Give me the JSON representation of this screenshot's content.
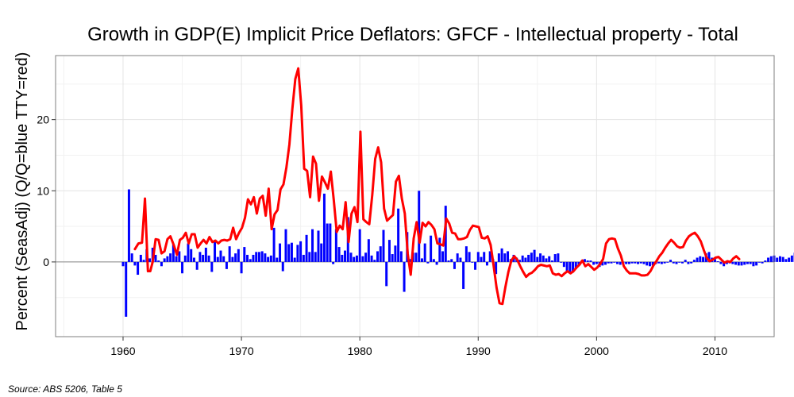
{
  "chart_data": {
    "type": "bar+line",
    "title": "Growth in GDP(E) Implicit Price Deflators: GFCF - Intellectual property - Total",
    "ylabel": "Percent (SeasAdj) (Q/Q=blue TTY=red)",
    "xlabel": "",
    "source": "Source: ABS 5206, Table 5",
    "xlim": [
      1954.3,
      2015.0
    ],
    "ylim": [
      -10.5,
      29.0
    ],
    "x_ticks": [
      1960,
      1970,
      1980,
      1990,
      2000,
      2010
    ],
    "y_ticks": [
      0,
      10,
      20
    ],
    "grid": true,
    "colors": {
      "bar": "#0000ff",
      "line": "#ff0000",
      "zero_line": "#888888",
      "grid_major": "#e4e4e4",
      "grid_minor": "#f2f2f2",
      "border": "#7f7f7f"
    },
    "series": [
      {
        "kind": "bar",
        "start": 1960.0,
        "step": 0.25,
        "values": [
          -0.6,
          -7.7,
          10.2,
          1.2,
          -0.5,
          -1.8,
          1.0,
          0.3,
          1.8,
          0.5,
          2.0,
          1.0,
          0.2,
          -0.6,
          0.5,
          0.8,
          1.2,
          2.5,
          0.8,
          1.5,
          -1.6,
          0.9,
          2.6,
          1.8,
          0.6,
          -1.1,
          1.4,
          1.0,
          2.0,
          0.9,
          -1.4,
          2.8,
          0.7,
          1.6,
          0.8,
          -1.0,
          2.2,
          0.7,
          1.2,
          1.8,
          -1.6,
          2.1,
          1.0,
          0.4,
          1.0,
          1.4,
          1.4,
          1.5,
          1.2,
          0.7,
          0.9,
          4.8,
          0.6,
          2.6,
          -1.3,
          4.6,
          2.5,
          2.7,
          0.6,
          2.4,
          2.9,
          1.0,
          3.8,
          1.4,
          4.6,
          1.4,
          4.4,
          2.6,
          9.6,
          5.4,
          5.4,
          -0.3,
          4.6,
          2.1,
          1.0,
          1.6,
          6.3,
          1.3,
          0.7,
          0.9,
          4.6,
          0.8,
          1.3,
          3.2,
          0.9,
          0.3,
          1.5,
          2.2,
          4.5,
          -3.4,
          3.1,
          1.1,
          2.3,
          7.5,
          1.5,
          -4.2,
          4.2,
          0.4,
          1.3,
          1.3,
          10.0,
          0.5,
          2.6,
          -0.2,
          3.7,
          0.4,
          -0.4,
          3.4,
          1.5,
          7.9,
          0.2,
          0.4,
          -1.0,
          1.2,
          0.6,
          -3.8,
          2.2,
          1.4,
          -0.1,
          -1.1,
          1.4,
          0.7,
          1.4,
          -0.5,
          1.5,
          0.4,
          -1.7,
          1.2,
          1.9,
          1.2,
          1.5,
          0.4,
          1.0,
          0.6,
          0.3,
          0.9,
          0.6,
          1.0,
          1.3,
          1.7,
          0.7,
          1.2,
          0.9,
          0.5,
          0.8,
          0.2,
          1.1,
          1.2,
          -0.1,
          -0.7,
          -1.3,
          -1.4,
          -1.5,
          -1.0,
          -0.4,
          0.2,
          0.4,
          0.2,
          0.2,
          -0.4,
          -0.3,
          -0.7,
          -0.5,
          -0.4,
          -0.2,
          -0.2,
          -0.1,
          -0.3,
          -0.4,
          -0.2,
          -0.3,
          -0.3,
          -0.2,
          -0.2,
          -0.3,
          -0.2,
          -0.3,
          -0.5,
          -0.6,
          -0.5,
          -0.3,
          -0.2,
          -0.3,
          -0.2,
          -0.1,
          0.3,
          -0.2,
          -0.3,
          -0.1,
          -0.2,
          0.3,
          -0.3,
          -0.2,
          0.3,
          0.6,
          0.8,
          0.7,
          1.2,
          1.4,
          0.6,
          0.4,
          0.1,
          -0.3,
          -0.6,
          -0.3,
          -0.2,
          -0.3,
          -0.4,
          -0.5,
          -0.5,
          -0.4,
          -0.3,
          -0.3,
          -0.6,
          -0.5,
          -0.1,
          -0.2,
          0.2,
          0.6,
          0.8,
          0.9,
          0.6,
          0.8,
          0.7,
          0.4,
          0.6,
          0.9,
          1.3,
          1.3,
          0.6,
          0.9,
          1.1,
          0.9,
          0.3,
          0.2,
          0.0,
          0.1,
          0.2,
          0.0,
          0.1,
          0.1,
          0.2,
          0.4,
          0.3,
          0.0,
          0.2,
          0.2
        ]
      },
      {
        "kind": "line",
        "points": [
          [
            1961.0,
            1.8
          ],
          [
            1961.3,
            2.6
          ],
          [
            1961.6,
            2.7
          ],
          [
            1961.85,
            8.9
          ],
          [
            1962.1,
            -1.3
          ],
          [
            1962.3,
            -1.3
          ],
          [
            1962.5,
            0.0
          ],
          [
            1962.75,
            3.2
          ],
          [
            1963.0,
            3.1
          ],
          [
            1963.25,
            1.2
          ],
          [
            1963.5,
            1.5
          ],
          [
            1963.75,
            3.2
          ],
          [
            1964.0,
            3.6
          ],
          [
            1964.3,
            2.3
          ],
          [
            1964.55,
            1.0
          ],
          [
            1964.8,
            3.1
          ],
          [
            1965.05,
            3.4
          ],
          [
            1965.3,
            4.1
          ],
          [
            1965.55,
            2.6
          ],
          [
            1965.8,
            3.9
          ],
          [
            1966.05,
            3.9
          ],
          [
            1966.3,
            2.0
          ],
          [
            1966.55,
            2.6
          ],
          [
            1966.8,
            3.1
          ],
          [
            1967.05,
            2.6
          ],
          [
            1967.3,
            3.5
          ],
          [
            1967.55,
            2.8
          ],
          [
            1967.8,
            3.0
          ],
          [
            1968.05,
            2.6
          ],
          [
            1968.3,
            3.0
          ],
          [
            1968.55,
            3.1
          ],
          [
            1968.8,
            3.0
          ],
          [
            1969.05,
            3.2
          ],
          [
            1969.3,
            4.8
          ],
          [
            1969.55,
            3.2
          ],
          [
            1969.8,
            4.1
          ],
          [
            1970.05,
            4.8
          ],
          [
            1970.3,
            6.2
          ],
          [
            1970.55,
            8.8
          ],
          [
            1970.8,
            8.1
          ],
          [
            1971.05,
            9.1
          ],
          [
            1971.3,
            6.8
          ],
          [
            1971.55,
            8.9
          ],
          [
            1971.8,
            9.3
          ],
          [
            1972.05,
            6.5
          ],
          [
            1972.3,
            10.3
          ],
          [
            1972.55,
            4.6
          ],
          [
            1972.8,
            6.7
          ],
          [
            1973.05,
            7.3
          ],
          [
            1973.3,
            10.2
          ],
          [
            1973.55,
            10.9
          ],
          [
            1973.8,
            13.3
          ],
          [
            1974.05,
            16.5
          ],
          [
            1974.3,
            21.5
          ],
          [
            1974.55,
            25.7
          ],
          [
            1974.8,
            27.2
          ],
          [
            1975.05,
            22.0
          ],
          [
            1975.3,
            13.1
          ],
          [
            1975.55,
            12.8
          ],
          [
            1975.8,
            9.1
          ],
          [
            1976.05,
            14.8
          ],
          [
            1976.3,
            13.8
          ],
          [
            1976.55,
            8.6
          ],
          [
            1976.8,
            12.0
          ],
          [
            1977.05,
            11.2
          ],
          [
            1977.3,
            10.3
          ],
          [
            1977.55,
            12.7
          ],
          [
            1977.8,
            8.7
          ],
          [
            1978.05,
            4.2
          ],
          [
            1978.3,
            5.1
          ],
          [
            1978.55,
            4.6
          ],
          [
            1978.8,
            8.4
          ],
          [
            1979.05,
            2.8
          ],
          [
            1979.3,
            6.8
          ],
          [
            1979.55,
            7.7
          ],
          [
            1979.8,
            5.6
          ],
          [
            1980.05,
            18.3
          ],
          [
            1980.3,
            6.0
          ],
          [
            1980.55,
            5.6
          ],
          [
            1980.8,
            5.3
          ],
          [
            1981.05,
            9.4
          ],
          [
            1981.3,
            14.5
          ],
          [
            1981.55,
            16.1
          ],
          [
            1981.8,
            14.0
          ],
          [
            1982.05,
            7.5
          ],
          [
            1982.3,
            5.8
          ],
          [
            1982.55,
            6.2
          ],
          [
            1982.8,
            6.6
          ],
          [
            1983.05,
            11.3
          ],
          [
            1983.3,
            12.1
          ],
          [
            1983.55,
            8.9
          ],
          [
            1983.8,
            6.8
          ],
          [
            1984.05,
            1.1
          ],
          [
            1984.3,
            -1.8
          ],
          [
            1984.55,
            3.3
          ],
          [
            1984.8,
            5.6
          ],
          [
            1985.05,
            2.7
          ],
          [
            1985.3,
            5.5
          ],
          [
            1985.55,
            5.0
          ],
          [
            1985.8,
            5.6
          ],
          [
            1986.05,
            5.2
          ],
          [
            1986.3,
            4.6
          ],
          [
            1986.55,
            2.6
          ],
          [
            1986.8,
            2.5
          ],
          [
            1987.05,
            2.3
          ],
          [
            1987.3,
            6.1
          ],
          [
            1987.55,
            5.4
          ],
          [
            1987.8,
            4.1
          ],
          [
            1988.05,
            4.0
          ],
          [
            1988.3,
            3.2
          ],
          [
            1988.55,
            3.2
          ],
          [
            1988.8,
            3.3
          ],
          [
            1989.05,
            3.5
          ],
          [
            1989.3,
            4.5
          ],
          [
            1989.55,
            5.1
          ],
          [
            1989.8,
            5.0
          ],
          [
            1990.05,
            4.9
          ],
          [
            1990.3,
            3.4
          ],
          [
            1990.55,
            3.3
          ],
          [
            1990.8,
            3.6
          ],
          [
            1991.05,
            2.4
          ],
          [
            1991.3,
            -0.5
          ],
          [
            1991.55,
            -3.6
          ],
          [
            1991.8,
            -5.8
          ],
          [
            1992.05,
            -5.9
          ],
          [
            1992.3,
            -3.5
          ],
          [
            1992.55,
            -1.4
          ],
          [
            1992.8,
            0.2
          ],
          [
            1993.05,
            0.8
          ],
          [
            1993.3,
            0.3
          ],
          [
            1993.55,
            -0.6
          ],
          [
            1993.8,
            -1.4
          ],
          [
            1994.05,
            -2.1
          ],
          [
            1994.3,
            -1.7
          ],
          [
            1994.55,
            -1.5
          ],
          [
            1994.8,
            -1.1
          ],
          [
            1995.05,
            -0.6
          ],
          [
            1995.3,
            -0.4
          ],
          [
            1995.55,
            -0.5
          ],
          [
            1995.8,
            -0.6
          ],
          [
            1996.05,
            -0.5
          ],
          [
            1996.3,
            -1.6
          ],
          [
            1996.55,
            -1.8
          ],
          [
            1996.8,
            -1.7
          ],
          [
            1997.05,
            -2.0
          ],
          [
            1997.3,
            -1.6
          ],
          [
            1997.55,
            -1.3
          ],
          [
            1997.8,
            -1.6
          ],
          [
            1998.05,
            -1.3
          ],
          [
            1998.3,
            -0.8
          ],
          [
            1998.55,
            -0.4
          ],
          [
            1998.8,
            0.2
          ],
          [
            1999.05,
            -0.6
          ],
          [
            1999.3,
            -0.3
          ],
          [
            1999.55,
            -0.7
          ],
          [
            1999.8,
            -1.1
          ],
          [
            2000.05,
            -0.8
          ],
          [
            2000.3,
            -0.3
          ],
          [
            2000.55,
            0.4
          ],
          [
            2000.8,
            2.6
          ],
          [
            2001.05,
            3.2
          ],
          [
            2001.3,
            3.3
          ],
          [
            2001.55,
            3.2
          ],
          [
            2001.8,
            1.9
          ],
          [
            2002.05,
            0.9
          ],
          [
            2002.3,
            -0.6
          ],
          [
            2002.55,
            -1.2
          ],
          [
            2002.8,
            -1.6
          ],
          [
            2003.05,
            -1.6
          ],
          [
            2003.3,
            -1.6
          ],
          [
            2003.55,
            -1.7
          ],
          [
            2003.8,
            -1.9
          ],
          [
            2004.05,
            -1.9
          ],
          [
            2004.3,
            -1.8
          ],
          [
            2004.55,
            -1.3
          ],
          [
            2004.8,
            -0.5
          ],
          [
            2005.05,
            0.1
          ],
          [
            2005.3,
            0.8
          ],
          [
            2005.55,
            1.3
          ],
          [
            2005.8,
            2.0
          ],
          [
            2006.05,
            2.6
          ],
          [
            2006.3,
            3.1
          ],
          [
            2006.55,
            2.7
          ],
          [
            2006.8,
            2.2
          ],
          [
            2007.05,
            2.0
          ],
          [
            2007.3,
            2.1
          ],
          [
            2007.55,
            3.0
          ],
          [
            2007.8,
            3.6
          ],
          [
            2008.05,
            3.9
          ],
          [
            2008.3,
            4.1
          ],
          [
            2008.55,
            3.6
          ],
          [
            2008.8,
            2.9
          ],
          [
            2009.05,
            1.7
          ],
          [
            2009.3,
            0.6
          ],
          [
            2009.55,
            0.1
          ],
          [
            2009.8,
            0.3
          ],
          [
            2010.05,
            0.6
          ],
          [
            2010.3,
            0.7
          ],
          [
            2010.55,
            0.3
          ],
          [
            2010.8,
            -0.1
          ],
          [
            2011.05,
            0.1
          ],
          [
            2011.3,
            0.0
          ],
          [
            2011.55,
            0.5
          ],
          [
            2011.8,
            0.8
          ],
          [
            2012.05,
            0.4
          ]
        ]
      }
    ]
  }
}
